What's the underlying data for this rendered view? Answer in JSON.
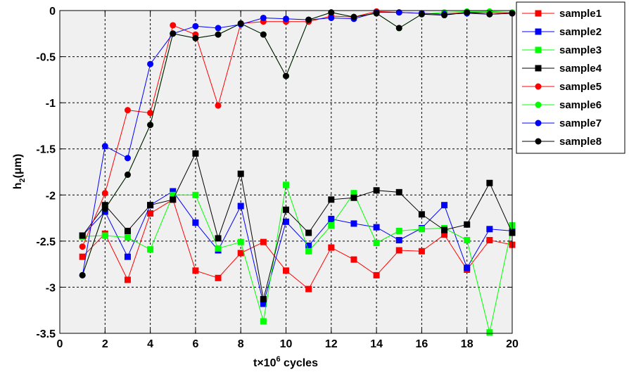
{
  "chart_data": {
    "type": "line",
    "xlabel": "t×10⁶ cycles",
    "xlabel_prefix": "t×10",
    "xlabel_exp": "6",
    "xlabel_suffix": " cycles",
    "ylabel": "h₂(μm)",
    "ylabel_main": "h",
    "ylabel_sub": "2",
    "ylabel_unit": "(μm)",
    "xlim": [
      0,
      20
    ],
    "ylim": [
      -3.5,
      0
    ],
    "xticks": [
      0,
      2,
      4,
      6,
      8,
      10,
      12,
      14,
      16,
      18,
      20
    ],
    "yticks": [
      0,
      -0.5,
      -1,
      -1.5,
      -2,
      -2.5,
      -3,
      -3.5
    ],
    "xtick_labels": [
      "0",
      "2",
      "4",
      "6",
      "8",
      "10",
      "12",
      "14",
      "16",
      "18",
      "20"
    ],
    "ytick_labels": [
      "0",
      "-0.5",
      "-1",
      "-1.5",
      "-2",
      "-2.5",
      "-3",
      "-3.5"
    ],
    "grid": true,
    "legend_position": "outside top-right",
    "x": [
      1,
      2,
      3,
      4,
      5,
      6,
      7,
      8,
      9,
      10,
      11,
      12,
      13,
      14,
      15,
      16,
      17,
      18,
      19,
      20
    ],
    "series": [
      {
        "name": "sample1",
        "color": "#ff0000",
        "marker": "square",
        "values": [
          -2.67,
          -2.42,
          -2.92,
          -2.2,
          -2.05,
          -2.82,
          -2.9,
          -2.63,
          -2.51,
          -2.82,
          -3.02,
          -2.57,
          -2.7,
          -2.87,
          -2.6,
          -2.61,
          -2.43,
          -2.81,
          -2.49,
          -2.54
        ]
      },
      {
        "name": "sample2",
        "color": "#0000ff",
        "marker": "square",
        "values": [
          -2.44,
          -2.18,
          -2.67,
          -2.11,
          -1.96,
          -2.3,
          -2.6,
          -2.12,
          -3.18,
          -2.29,
          -2.55,
          -2.26,
          -2.31,
          -2.35,
          -2.49,
          -2.36,
          -2.11,
          -2.79,
          -2.37,
          -2.39
        ]
      },
      {
        "name": "sample3",
        "color": "#00ff00",
        "marker": "square",
        "values": [
          -2.45,
          -2.44,
          -2.46,
          -2.59,
          -2.0,
          -2.0,
          -2.58,
          -2.51,
          -3.37,
          -1.89,
          -2.61,
          -2.33,
          -1.98,
          -2.52,
          -2.39,
          -2.37,
          -2.36,
          -2.49,
          -3.49,
          -2.33
        ]
      },
      {
        "name": "sample4",
        "color": "#000000",
        "marker": "square",
        "values": [
          -2.44,
          -2.11,
          -2.39,
          -2.11,
          -2.05,
          -1.55,
          -2.47,
          -1.77,
          -3.13,
          -2.16,
          -2.41,
          -2.05,
          -2.03,
          -1.95,
          -1.97,
          -2.21,
          -2.38,
          -2.32,
          -1.87,
          -2.41
        ]
      },
      {
        "name": "sample5",
        "color": "#ff0000",
        "marker": "circle",
        "values": [
          -2.56,
          -1.98,
          -1.08,
          -1.11,
          -0.16,
          -0.26,
          -1.03,
          -0.14,
          -0.12,
          -0.12,
          -0.12,
          -0.06,
          -0.07,
          -0.01,
          -0.02,
          -0.03,
          -0.04,
          -0.02,
          -0.02,
          -0.03
        ]
      },
      {
        "name": "sample6",
        "color": "#00ff00",
        "marker": "circle",
        "values": [
          -2.87,
          -2.15,
          -1.78,
          -1.24,
          -0.25,
          -0.3,
          -0.26,
          -0.14,
          -0.26,
          -0.71,
          -0.1,
          -0.02,
          -0.07,
          -0.03,
          -0.19,
          -0.04,
          -0.02,
          -0.01,
          -0.01,
          -0.02
        ]
      },
      {
        "name": "sample7",
        "color": "#0000ff",
        "marker": "circle",
        "values": [
          -2.87,
          -1.47,
          -1.6,
          -0.58,
          -0.25,
          -0.17,
          -0.19,
          -0.15,
          -0.08,
          -0.09,
          -0.1,
          -0.08,
          -0.09,
          -0.02,
          -0.02,
          -0.03,
          -0.04,
          -0.03,
          -0.04,
          -0.03
        ]
      },
      {
        "name": "sample8",
        "color": "#000000",
        "marker": "circle",
        "values": [
          -2.87,
          -2.15,
          -1.78,
          -1.24,
          -0.25,
          -0.3,
          -0.26,
          -0.14,
          -0.26,
          -0.71,
          -0.1,
          -0.02,
          -0.07,
          -0.03,
          -0.19,
          -0.04,
          -0.05,
          -0.02,
          -0.04,
          -0.03
        ]
      }
    ]
  }
}
